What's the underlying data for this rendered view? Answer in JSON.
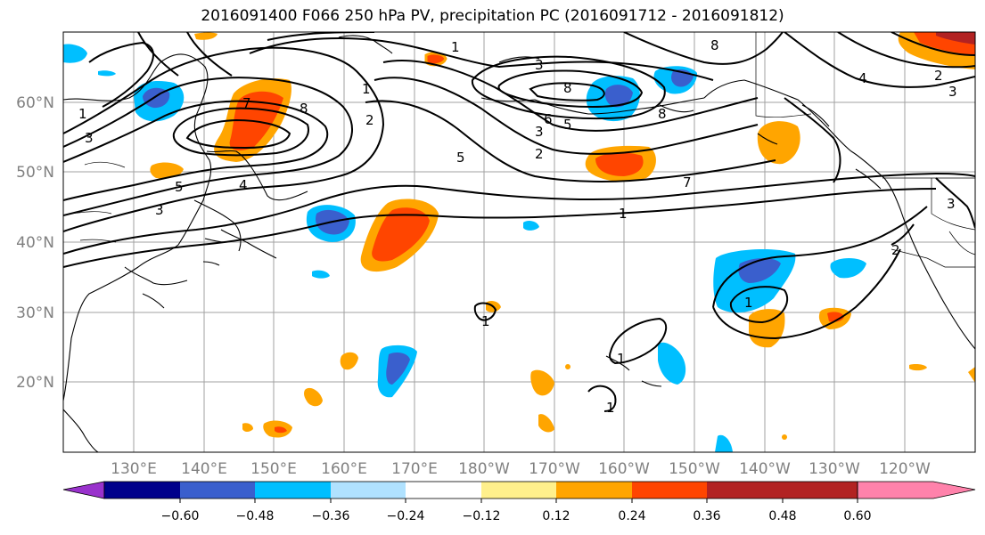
{
  "title": "2016091400 F066 250 hPa PV, precipitation PC (2016091712 - 2016091812)",
  "map": {
    "lat_labels": [
      "60°N",
      "50°N",
      "40°N",
      "30°N",
      "20°N"
    ],
    "lon_labels": [
      "130°E",
      "140°E",
      "150°E",
      "160°E",
      "170°E",
      "180°W",
      "170°W",
      "160°W",
      "150°W",
      "140°W",
      "130°W",
      "120°W"
    ],
    "contour_labels": [
      "1",
      "3",
      "5",
      "7",
      "8",
      "4",
      "5",
      "3",
      "1",
      "1",
      "2",
      "3",
      "8",
      "6",
      "5",
      "3",
      "2",
      "7",
      "8",
      "1",
      "4",
      "2",
      "3",
      "8",
      "1",
      "2",
      "3",
      "1",
      "1",
      "1"
    ]
  },
  "colorbar": {
    "colors": [
      "#9932cc",
      "#00008b",
      "#3a5fcd",
      "#00bfff",
      "#b0e2ff",
      "#ffffff",
      "#fff08c",
      "#ffa500",
      "#ff4500",
      "#b22222",
      "#ff82ab"
    ],
    "tick_labels": [
      "−0.60",
      "−0.48",
      "−0.36",
      "−0.24",
      "−0.12",
      "0.12",
      "0.24",
      "0.36",
      "0.48",
      "0.60"
    ]
  }
}
